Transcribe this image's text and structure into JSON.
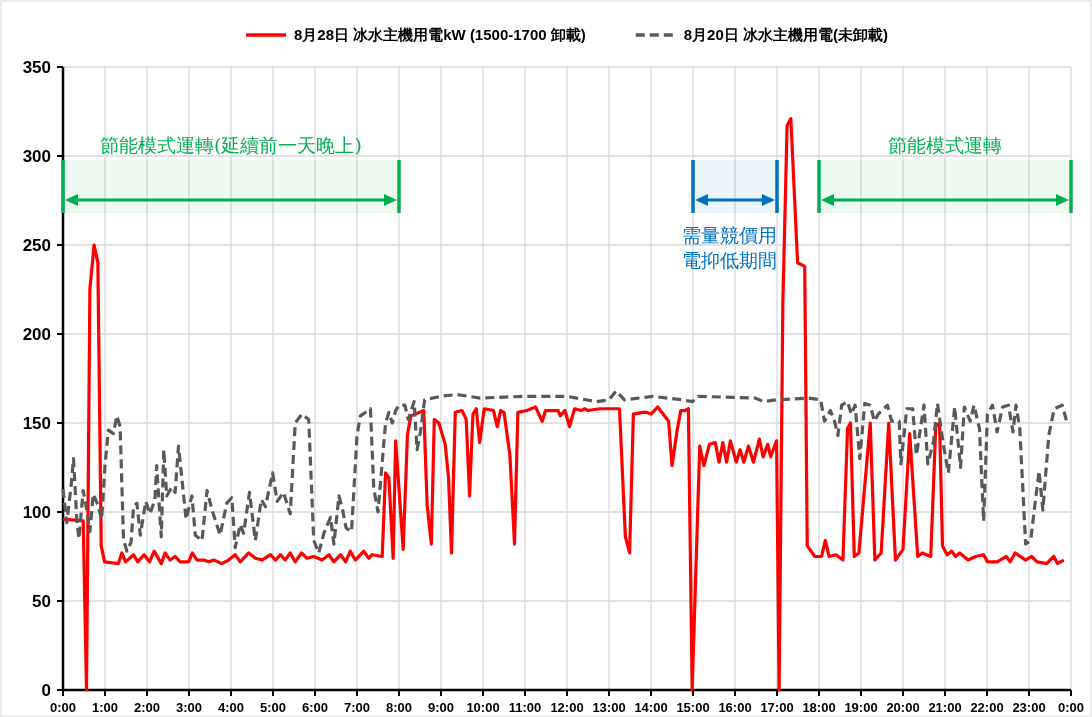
{
  "chart_data": {
    "type": "line",
    "legend": "top",
    "grid": true,
    "xlim": [
      0,
      24
    ],
    "ylim": [
      0,
      350
    ],
    "xticks": [
      {
        "value": 0,
        "label": "0:00"
      },
      {
        "value": 1,
        "label": "1:00"
      },
      {
        "value": 2,
        "label": "2:00"
      },
      {
        "value": 3,
        "label": "3:00"
      },
      {
        "value": 4,
        "label": "4:00"
      },
      {
        "value": 5,
        "label": "5:00"
      },
      {
        "value": 6,
        "label": "6:00"
      },
      {
        "value": 7,
        "label": "7:00"
      },
      {
        "value": 8,
        "label": "8:00"
      },
      {
        "value": 9,
        "label": "9:00"
      },
      {
        "value": 10,
        "label": "10:00"
      },
      {
        "value": 11,
        "label": "11:00"
      },
      {
        "value": 12,
        "label": "12:00"
      },
      {
        "value": 13,
        "label": "13:00"
      },
      {
        "value": 14,
        "label": "14:00"
      },
      {
        "value": 15,
        "label": "15:00"
      },
      {
        "value": 16,
        "label": "16:00"
      },
      {
        "value": 17,
        "label": "17:00"
      },
      {
        "value": 18,
        "label": "18:00"
      },
      {
        "value": 19,
        "label": "19:00"
      },
      {
        "value": 20,
        "label": "20:00"
      },
      {
        "value": 21,
        "label": "21:00"
      },
      {
        "value": 22,
        "label": "22:00"
      },
      {
        "value": 23,
        "label": "23:00"
      },
      {
        "value": 24,
        "label": "0:00"
      }
    ],
    "yticks": [
      0,
      50,
      100,
      150,
      200,
      250,
      300,
      350
    ],
    "bands": [
      {
        "axis": "x",
        "from": 0,
        "to": 8,
        "label": "節能模式運轉(延續前一天晚上)",
        "color": "#00b050"
      },
      {
        "axis": "x",
        "from": 15,
        "to": 17,
        "label": "需量競價用電抑低期間",
        "color": "#0070c0"
      },
      {
        "axis": "x",
        "from": 18,
        "to": 24,
        "label": "節能模式運轉",
        "color": "#00b050"
      }
    ],
    "series": [
      {
        "name": "8月28日 冰水主機用電kW (1500-1700 卸載)",
        "color": "#ff0000",
        "line_style": "solid",
        "x": [
          0,
          0.48,
          0.56,
          0.64,
          0.74,
          0.83,
          0.91,
          0.99,
          1.32,
          1.4,
          1.49,
          1.68,
          1.78,
          1.93,
          2.06,
          2.17,
          2.34,
          2.43,
          2.55,
          2.67,
          2.79,
          2.99,
          3.08,
          3.19,
          3.35,
          3.47,
          3.59,
          3.78,
          3.94,
          4.1,
          4.22,
          4.42,
          4.58,
          4.74,
          4.94,
          5.06,
          5.18,
          5.29,
          5.41,
          5.53,
          5.68,
          5.81,
          5.97,
          6.17,
          6.33,
          6.45,
          6.61,
          6.73,
          6.84,
          6.96,
          7.16,
          7.28,
          7.36,
          7.6,
          7.68,
          7.76,
          7.86,
          7.92,
          8.1,
          8.2,
          8.28,
          8.59,
          8.67,
          8.77,
          8.84,
          8.95,
          9.1,
          9.18,
          9.25,
          9.34,
          9.5,
          9.6,
          9.68,
          9.76,
          9.84,
          9.92,
          10.03,
          10.25,
          10.34,
          10.42,
          10.5,
          10.64,
          10.75,
          10.83,
          11.04,
          11.25,
          11.41,
          11.49,
          11.79,
          11.84,
          11.95,
          12.06,
          12.18,
          12.34,
          12.42,
          12.5,
          12.78,
          13.25,
          13.39,
          13.49,
          13.58,
          13.8,
          13.88,
          14,
          14.16,
          14.42,
          14.5,
          14.63,
          14.71,
          14.81,
          14.89,
          14.98,
          15.16,
          15.26,
          15.39,
          15.53,
          15.62,
          15.71,
          15.8,
          15.89,
          16.03,
          16.12,
          16.21,
          16.32,
          16.44,
          16.58,
          16.67,
          16.78,
          16.85,
          16.99,
          17.05,
          17.14,
          17.24,
          17.33,
          17.49,
          17.66,
          17.72,
          17.9,
          18.06,
          18.15,
          18.24,
          18.4,
          18.57,
          18.68,
          18.75,
          18.84,
          18.95,
          19.22,
          19.33,
          19.48,
          19.66,
          19.82,
          20,
          20.16,
          20.35,
          20.46,
          20.66,
          20.78,
          20.87,
          20.94,
          21.05,
          21.16,
          21.25,
          21.35,
          21.55,
          21.73,
          21.92,
          22.01,
          22.24,
          22.46,
          22.55,
          22.67,
          22.92,
          23.06,
          23.19,
          23.42,
          23.59,
          23.68,
          23.83
        ],
        "values": [
          96,
          95,
          0,
          225,
          250,
          240,
          81,
          72,
          71,
          77,
          72,
          76,
          72,
          76,
          72,
          78,
          71,
          77,
          73,
          75,
          72,
          72,
          77,
          73,
          73,
          72,
          73,
          71,
          73,
          76,
          72,
          77,
          74,
          73,
          76,
          73,
          76,
          73,
          77,
          72,
          77,
          74,
          75,
          73,
          76,
          72,
          76,
          72,
          78,
          73,
          78,
          74,
          76,
          75,
          122,
          119,
          74,
          140,
          79,
          143,
          154,
          157,
          104,
          82,
          152,
          150,
          138,
          119,
          77,
          156,
          157,
          152,
          109,
          155,
          158,
          139,
          158,
          157,
          148,
          157,
          156,
          132,
          82,
          156,
          157,
          159,
          151,
          157,
          157,
          154,
          157,
          148,
          158,
          157,
          158,
          157,
          158,
          158,
          86,
          77,
          155,
          156,
          156,
          155,
          159,
          151,
          126,
          147,
          157,
          157,
          158,
          0,
          137,
          126,
          138,
          139,
          128,
          139,
          128,
          140,
          128,
          135,
          128,
          137,
          128,
          141,
          131,
          138,
          131,
          140,
          0,
          218,
          317,
          321,
          240,
          238,
          81,
          75,
          75,
          84,
          75,
          76,
          73,
          147,
          150,
          75,
          77,
          150,
          73,
          77,
          150,
          73,
          79,
          144,
          75,
          77,
          75,
          148,
          150,
          81,
          76,
          78,
          75,
          77,
          73,
          75,
          76,
          72,
          72,
          75,
          72,
          77,
          73,
          75,
          72,
          71,
          75,
          71,
          73
        ]
      },
      {
        "name": "8月20日 冰水主機用電(未卸載)",
        "color": "#595959",
        "line_style": "dashed",
        "x": [
          0,
          0.09,
          0.19,
          0.25,
          0.33,
          0.38,
          0.48,
          0.56,
          0.64,
          0.72,
          0.83,
          0.92,
          1,
          1.08,
          1.2,
          1.28,
          1.36,
          1.44,
          1.52,
          1.62,
          1.68,
          1.76,
          1.84,
          1.97,
          2.07,
          2.19,
          2.23,
          2.34,
          2.4,
          2.47,
          2.59,
          2.67,
          2.75,
          2.93,
          3.07,
          3.15,
          3.31,
          3.43,
          3.55,
          3.74,
          3.9,
          4.02,
          4.1,
          4.22,
          4.3,
          4.44,
          4.58,
          4.72,
          4.82,
          4.99,
          5.1,
          5.25,
          5.41,
          5.53,
          5.69,
          5.85,
          5.97,
          6.09,
          6.21,
          6.37,
          6.45,
          6.57,
          6.66,
          6.74,
          6.87,
          7,
          7.08,
          7.32,
          7.4,
          7.5,
          7.68,
          7.76,
          7.84,
          7.92,
          8,
          8.14,
          8.22,
          8.36,
          8.43,
          8.51,
          8.61,
          8.99,
          9.38,
          9.93,
          11,
          11.99,
          12.7,
          13,
          13.17,
          13.37,
          14.04,
          14.75,
          14.99,
          15.12,
          16.49,
          16.67,
          16.99,
          17.76,
          18.04,
          18.13,
          18.27,
          18.36,
          18.45,
          18.54,
          18.68,
          18.77,
          18.86,
          18.97,
          19.09,
          19.22,
          19.32,
          19.41,
          19.63,
          19.73,
          19.91,
          19.95,
          20.09,
          20.23,
          20.32,
          20.5,
          20.59,
          20.73,
          20.82,
          20.96,
          21.08,
          21.23,
          21.37,
          21.46,
          21.6,
          21.69,
          21.82,
          21.92,
          22.01,
          22.13,
          22.24,
          22.37,
          22.51,
          22.62,
          22.69,
          22.78,
          22.92,
          23.04,
          23.15,
          23.24,
          23.33,
          23.47,
          23.6,
          23.79,
          23.92
        ],
        "values": [
          113,
          94,
          114,
          130,
          95,
          85,
          112,
          102,
          89,
          110,
          104,
          96,
          126,
          146,
          144,
          154,
          148,
          85,
          78,
          83,
          103,
          105,
          87,
          106,
          99,
          107,
          126,
          86,
          135,
          109,
          114,
          111,
          137,
          96,
          109,
          87,
          84,
          112,
          101,
          87,
          105,
          108,
          80,
          93,
          88,
          111,
          84,
          107,
          103,
          122,
          106,
          111,
          99,
          150,
          155,
          152,
          84,
          77,
          88,
          97,
          82,
          109,
          101,
          91,
          89,
          143,
          154,
          158,
          113,
          100,
          150,
          156,
          150,
          157,
          160,
          160,
          152,
          162,
          135,
          145,
          163,
          165,
          166,
          164,
          165,
          165,
          162,
          163,
          168,
          163,
          165,
          163,
          162,
          165,
          164,
          162,
          163,
          164,
          163,
          151,
          157,
          152,
          143,
          160,
          162,
          155,
          160,
          130,
          161,
          160,
          151,
          155,
          160,
          151,
          151,
          127,
          158,
          158,
          132,
          160,
          127,
          140,
          161,
          138,
          122,
          159,
          125,
          159,
          151,
          160,
          147,
          95,
          155,
          160,
          145,
          159,
          160,
          145,
          160,
          147,
          82,
          84,
          106,
          123,
          101,
          143,
          158,
          160,
          149
        ]
      }
    ]
  }
}
